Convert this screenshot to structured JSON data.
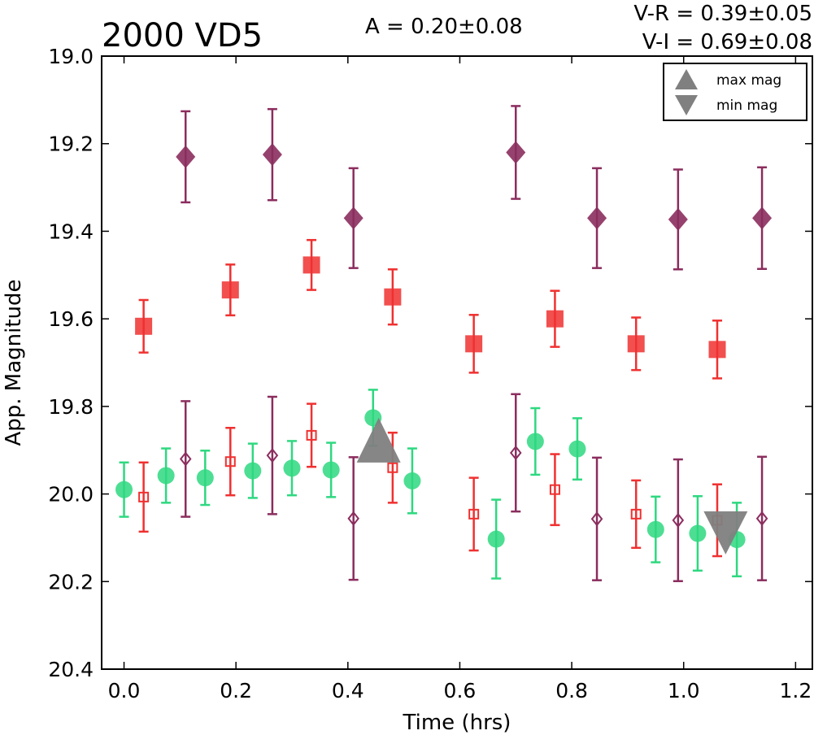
{
  "chart_data": {
    "type": "scatter",
    "title": "2000 VD5",
    "annotations": {
      "amplitude": "A  = 0.20±0.08",
      "v_r": "V-R = 0.39±0.05",
      "v_i": "V-I  = 0.69±0.08"
    },
    "xlabel": "Time (hrs)",
    "ylabel": "App. Magnitude",
    "xlim": [
      -0.04,
      1.23
    ],
    "ylim": [
      20.4,
      19.0
    ],
    "y_inverted": true,
    "xticks": [
      "0.0",
      "0.2",
      "0.4",
      "0.6",
      "0.8",
      "1.0",
      "1.2"
    ],
    "yticks": [
      "19.0",
      "19.2",
      "19.4",
      "19.6",
      "19.8",
      "20.0",
      "20.2",
      "20.4"
    ],
    "grid": false,
    "legend": {
      "position": "top-right",
      "entries": [
        {
          "label": "max mag",
          "marker": "triangle-up",
          "color": "#808080"
        },
        {
          "label": "min mag",
          "marker": "triangle-down",
          "color": "#808080"
        }
      ]
    },
    "series": [
      {
        "marker": "diamond",
        "filled": true,
        "color": "#8b2d5e",
        "points": [
          {
            "x": 0.11,
            "y": 19.23,
            "err": 0.104
          },
          {
            "x": 0.265,
            "y": 19.225,
            "err": 0.104
          },
          {
            "x": 0.41,
            "y": 19.37,
            "err": 0.114
          },
          {
            "x": 0.7,
            "y": 19.22,
            "err": 0.106
          },
          {
            "x": 0.845,
            "y": 19.37,
            "err": 0.114
          },
          {
            "x": 0.99,
            "y": 19.373,
            "err": 0.114
          },
          {
            "x": 1.14,
            "y": 19.37,
            "err": 0.116
          }
        ]
      },
      {
        "marker": "square",
        "filled": true,
        "color": "#f03030",
        "points": [
          {
            "x": 0.035,
            "y": 19.617,
            "err": 0.06
          },
          {
            "x": 0.19,
            "y": 19.534,
            "err": 0.058
          },
          {
            "x": 0.335,
            "y": 19.477,
            "err": 0.057
          },
          {
            "x": 0.48,
            "y": 19.55,
            "err": 0.063
          },
          {
            "x": 0.625,
            "y": 19.657,
            "err": 0.066
          },
          {
            "x": 0.77,
            "y": 19.6,
            "err": 0.064
          },
          {
            "x": 0.915,
            "y": 19.657,
            "err": 0.06
          },
          {
            "x": 1.06,
            "y": 19.67,
            "err": 0.066
          }
        ]
      },
      {
        "marker": "circle",
        "filled": true,
        "color": "#2ed880",
        "points": [
          {
            "x": 0.0,
            "y": 19.99,
            "err": 0.062
          },
          {
            "x": 0.075,
            "y": 19.958,
            "err": 0.062
          },
          {
            "x": 0.145,
            "y": 19.963,
            "err": 0.062
          },
          {
            "x": 0.23,
            "y": 19.947,
            "err": 0.062
          },
          {
            "x": 0.3,
            "y": 19.941,
            "err": 0.062
          },
          {
            "x": 0.37,
            "y": 19.945,
            "err": 0.062
          },
          {
            "x": 0.445,
            "y": 19.826,
            "err": 0.064
          },
          {
            "x": 0.515,
            "y": 19.97,
            "err": 0.074
          },
          {
            "x": 0.665,
            "y": 20.103,
            "err": 0.09
          },
          {
            "x": 0.735,
            "y": 19.88,
            "err": 0.076
          },
          {
            "x": 0.81,
            "y": 19.897,
            "err": 0.07
          },
          {
            "x": 0.95,
            "y": 20.081,
            "err": 0.075
          },
          {
            "x": 1.025,
            "y": 20.09,
            "err": 0.085
          },
          {
            "x": 1.095,
            "y": 20.104,
            "err": 0.084
          }
        ]
      },
      {
        "marker": "square",
        "filled": false,
        "color": "#f03030",
        "points": [
          {
            "x": 0.035,
            "y": 20.007,
            "err": 0.079
          },
          {
            "x": 0.19,
            "y": 19.926,
            "err": 0.077
          },
          {
            "x": 0.335,
            "y": 19.866,
            "err": 0.072
          },
          {
            "x": 0.48,
            "y": 19.94,
            "err": 0.08
          },
          {
            "x": 0.625,
            "y": 20.046,
            "err": 0.083
          },
          {
            "x": 0.77,
            "y": 19.99,
            "err": 0.081
          },
          {
            "x": 0.915,
            "y": 20.046,
            "err": 0.077
          },
          {
            "x": 1.06,
            "y": 20.06,
            "err": 0.082
          }
        ]
      },
      {
        "marker": "diamond",
        "filled": false,
        "color": "#8b2d5e",
        "points": [
          {
            "x": 0.11,
            "y": 19.92,
            "err": 0.132
          },
          {
            "x": 0.265,
            "y": 19.912,
            "err": 0.134
          },
          {
            "x": 0.41,
            "y": 20.056,
            "err": 0.14
          },
          {
            "x": 0.7,
            "y": 19.906,
            "err": 0.134
          },
          {
            "x": 0.845,
            "y": 20.057,
            "err": 0.14
          },
          {
            "x": 0.99,
            "y": 20.06,
            "err": 0.139
          },
          {
            "x": 1.14,
            "y": 20.056,
            "err": 0.141
          }
        ]
      },
      {
        "marker": "triangle-up",
        "filled": true,
        "color": "#808080",
        "role": "max mag",
        "points": [
          {
            "x": 0.455,
            "y": 19.878
          }
        ]
      },
      {
        "marker": "triangle-down",
        "filled": true,
        "color": "#808080",
        "role": "min mag",
        "points": [
          {
            "x": 1.075,
            "y": 20.06
          }
        ]
      }
    ]
  }
}
